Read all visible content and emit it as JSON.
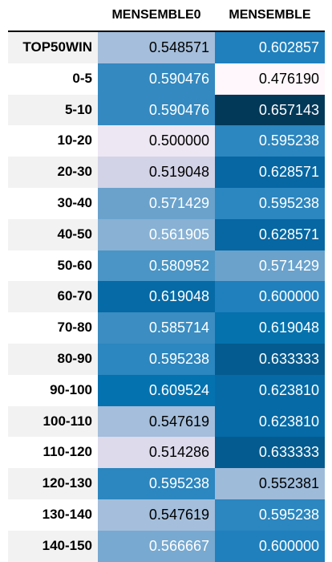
{
  "chart_data": {
    "type": "heatmap",
    "columns": [
      "MENSEMBLE0",
      "MENSEMBLE"
    ],
    "rows": [
      "TOP50WIN",
      "0-5",
      "5-10",
      "10-20",
      "20-30",
      "30-40",
      "40-50",
      "50-60",
      "60-70",
      "70-80",
      "80-90",
      "90-100",
      "100-110",
      "110-120",
      "120-130",
      "130-140",
      "140-150"
    ],
    "values": [
      [
        "0.548571",
        "0.602857"
      ],
      [
        "0.590476",
        "0.476190"
      ],
      [
        "0.590476",
        "0.657143"
      ],
      [
        "0.500000",
        "0.595238"
      ],
      [
        "0.519048",
        "0.628571"
      ],
      [
        "0.571429",
        "0.595238"
      ],
      [
        "0.561905",
        "0.628571"
      ],
      [
        "0.580952",
        "0.571429"
      ],
      [
        "0.619048",
        "0.600000"
      ],
      [
        "0.585714",
        "0.619048"
      ],
      [
        "0.595238",
        "0.633333"
      ],
      [
        "0.609524",
        "0.623810"
      ],
      [
        "0.547619",
        "0.623810"
      ],
      [
        "0.514286",
        "0.633333"
      ],
      [
        "0.595238",
        "0.552381"
      ],
      [
        "0.547619",
        "0.595238"
      ],
      [
        "0.566667",
        "0.600000"
      ]
    ],
    "colors": [
      [
        "#a4bedb",
        "#2080bd"
      ],
      [
        "#3389c0",
        "#fff7fb"
      ],
      [
        "#3389c0",
        "#023858"
      ],
      [
        "#ece7f2",
        "#2c86bf"
      ],
      [
        "#d2d3e7",
        "#0667a3"
      ],
      [
        "#6aa2cc",
        "#2c86bf"
      ],
      [
        "#88b1d4",
        "#0667a3"
      ],
      [
        "#4a95c5",
        "#6aa2cc"
      ],
      [
        "#056aa6",
        "#2080bd"
      ],
      [
        "#3b8dc2",
        "#0572ae"
      ],
      [
        "#2c86bf",
        "#045b8f"
      ],
      [
        "#0572b0",
        "#056aa6"
      ],
      [
        "#a4bedb",
        "#056aa6"
      ],
      [
        "#dcdaeb",
        "#045b8f"
      ],
      [
        "#2c86bf",
        "#9ebbda"
      ],
      [
        "#a4bedb",
        "#2c86bf"
      ],
      [
        "#78a9d0",
        "#2080bd"
      ]
    ],
    "text_colors": [
      [
        "#000000",
        "#ffffff"
      ],
      [
        "#ffffff",
        "#000000"
      ],
      [
        "#ffffff",
        "#ffffff"
      ],
      [
        "#000000",
        "#ffffff"
      ],
      [
        "#000000",
        "#ffffff"
      ],
      [
        "#ffffff",
        "#ffffff"
      ],
      [
        "#ffffff",
        "#ffffff"
      ],
      [
        "#ffffff",
        "#ffffff"
      ],
      [
        "#ffffff",
        "#ffffff"
      ],
      [
        "#ffffff",
        "#ffffff"
      ],
      [
        "#ffffff",
        "#ffffff"
      ],
      [
        "#ffffff",
        "#ffffff"
      ],
      [
        "#000000",
        "#ffffff"
      ],
      [
        "#000000",
        "#ffffff"
      ],
      [
        "#ffffff",
        "#000000"
      ],
      [
        "#000000",
        "#ffffff"
      ],
      [
        "#ffffff",
        "#ffffff"
      ]
    ],
    "row_stripe_color": "#f2f2f2"
  }
}
